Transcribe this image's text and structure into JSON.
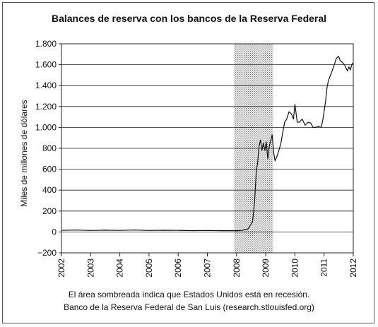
{
  "chart_data": {
    "type": "line",
    "title": "Balances de reserva con los bancos de la Reserva Federal",
    "ylabel": "Miles de millones de dólares",
    "xlabel": "",
    "xlim": [
      2002,
      2012
    ],
    "ylim": [
      -200,
      1800
    ],
    "x_ticks": [
      "2002",
      "2003",
      "2004",
      "2005",
      "2006",
      "2007",
      "2008",
      "2009",
      "2010",
      "2011",
      "2012"
    ],
    "y_ticks": [
      {
        "value": 1800,
        "label": "1.800"
      },
      {
        "value": 1600,
        "label": "1.600"
      },
      {
        "value": 1400,
        "label": "1.400"
      },
      {
        "value": 1200,
        "label": "1.200"
      },
      {
        "value": 1000,
        "label": "1.000"
      },
      {
        "value": 800,
        "label": "800"
      },
      {
        "value": 600,
        "label": "600"
      },
      {
        "value": 400,
        "label": "400"
      },
      {
        "value": 200,
        "label": "200"
      },
      {
        "value": 0,
        "label": "0"
      },
      {
        "value": -200,
        "label": "−200"
      }
    ],
    "grid": "horizontal",
    "recession": {
      "start": 2007.92,
      "end": 2009.25
    },
    "series": [
      {
        "x": [
          2002.0,
          2002.5,
          2003.0,
          2003.5,
          2004.0,
          2004.5,
          2005.0,
          2005.5,
          2006.0,
          2006.5,
          2007.0,
          2007.5,
          2008.0,
          2008.2,
          2008.4,
          2008.55,
          2008.62,
          2008.68,
          2008.72,
          2008.77,
          2008.82,
          2008.87,
          2008.92,
          2008.97,
          2009.02,
          2009.07,
          2009.12,
          2009.17,
          2009.22,
          2009.27,
          2009.32,
          2009.38,
          2009.45,
          2009.52,
          2009.58,
          2009.65,
          2009.72,
          2009.8,
          2009.88,
          2009.95,
          2010.0,
          2010.08,
          2010.15,
          2010.25,
          2010.35,
          2010.45,
          2010.55,
          2010.62,
          2010.7,
          2010.8,
          2010.9,
          2010.95,
          2011.0,
          2011.05,
          2011.1,
          2011.15,
          2011.25,
          2011.35,
          2011.42,
          2011.5,
          2011.55,
          2011.6,
          2011.7,
          2011.8,
          2011.85,
          2011.9,
          2011.95,
          2012.0
        ],
        "y": [
          15,
          18,
          14,
          17,
          15,
          18,
          14,
          16,
          15,
          13,
          14,
          12,
          12,
          15,
          30,
          100,
          300,
          600,
          650,
          820,
          880,
          780,
          850,
          780,
          860,
          700,
          820,
          870,
          930,
          760,
          680,
          720,
          780,
          850,
          950,
          1050,
          1080,
          1150,
          1130,
          1080,
          1220,
          1050,
          1050,
          1080,
          1020,
          1050,
          1040,
          1000,
          1000,
          1010,
          1000,
          1060,
          1150,
          1250,
          1380,
          1450,
          1520,
          1600,
          1660,
          1680,
          1640,
          1630,
          1600,
          1540,
          1580,
          1550,
          1600,
          1620
        ]
      }
    ]
  },
  "notes": {
    "line1": "El área sombreada indica que Estados Unidos está en recesión.",
    "line2": "Banco de la Reserva Federal de San Luis (research.stlouisfed.org)"
  },
  "colors": {
    "line": "#111111",
    "recession_fill": "#c8c8c8",
    "grid": "#222222"
  }
}
